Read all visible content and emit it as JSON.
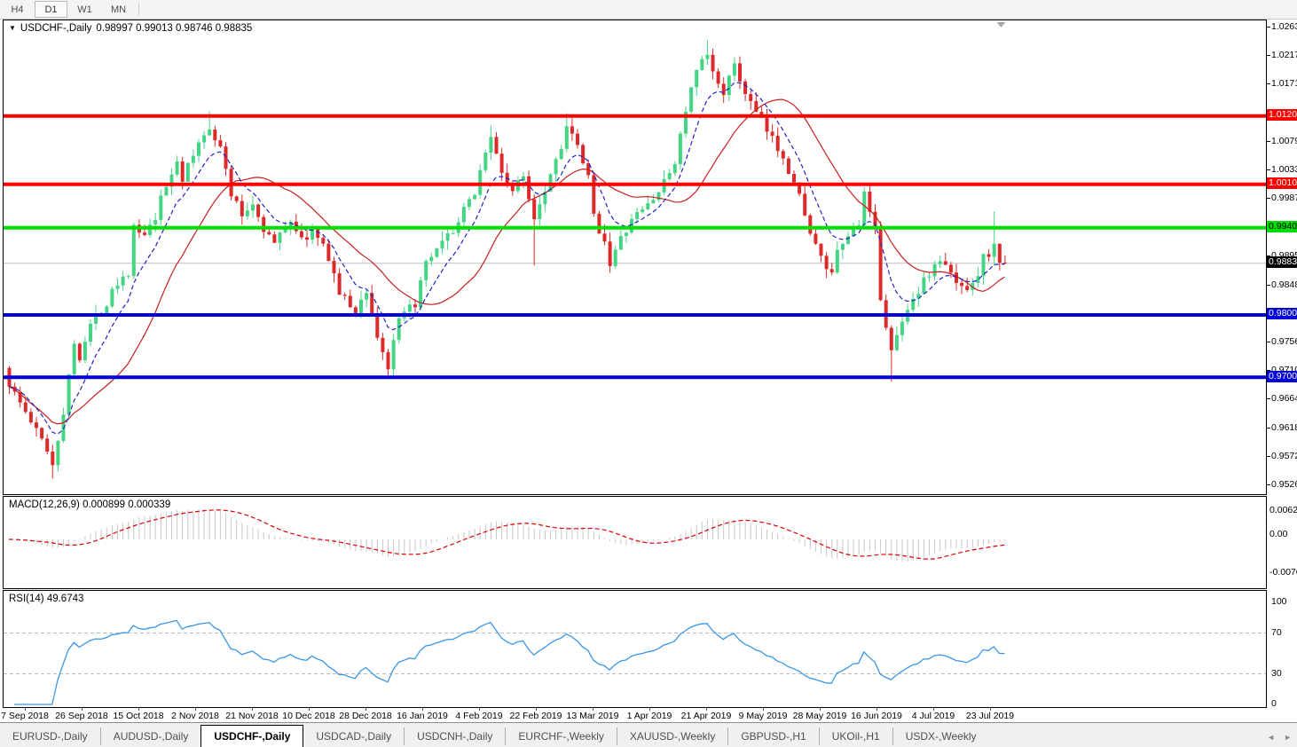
{
  "toolbar": {
    "buttons": [
      {
        "label": "H4",
        "active": false
      },
      {
        "label": "D1",
        "active": true
      },
      {
        "label": "W1",
        "active": false
      },
      {
        "label": "MN",
        "active": false
      }
    ]
  },
  "icons": {
    "symbol_dropdown": "▼",
    "chart_shift_marker": "triangle-down",
    "tab_scroll_left": "◄",
    "tab_scroll_right": "►"
  },
  "chart": {
    "title": {
      "symbol": "USDCHF-,Daily",
      "ohlc": "0.98997 0.99013 0.98746 0.98835",
      "open": "0.98997",
      "high": "0.99013",
      "low": "0.98746",
      "close": "0.98835"
    },
    "price_axis": {
      "ticks": [
        "1.02630",
        "1.02170",
        "1.01710",
        "1.00790",
        "1.00330",
        "0.99870",
        "0.98950",
        "0.98480",
        "0.97560",
        "0.97100",
        "0.96640",
        "0.96180",
        "0.95720",
        "0.95260"
      ],
      "price_at_top_anchor": 1.0263,
      "price_per_pixel": 0.0001428
    },
    "levels": [
      {
        "price": 1.01205,
        "label": "1.01205",
        "color": "#FF0000",
        "text_color": "#FFFFFF",
        "role": "resistance"
      },
      {
        "price": 1.00106,
        "label": "1.00106",
        "color": "#FF0000",
        "text_color": "#FFFFFF",
        "role": "resistance"
      },
      {
        "price": 0.99406,
        "label": "0.99406",
        "color": "#00DE00",
        "text_color": "#000000",
        "role": "pivot"
      },
      {
        "price": 0.98004,
        "label": "0.98004",
        "color": "#0000DC",
        "text_color": "#FFFFFF",
        "role": "support"
      },
      {
        "price": 0.97001,
        "label": "0.97001",
        "color": "#0000DC",
        "text_color": "#FFFFFF",
        "role": "support"
      }
    ],
    "current_price": {
      "price": 0.98835,
      "label": "0.98835",
      "line_color": "#C0C0C0",
      "badge_bg": "#000000",
      "badge_text": "#FFFFFF"
    },
    "colors": {
      "bull": "#44D584",
      "bear": "#DC2A2A",
      "ma_fast": "#2222C8",
      "ma_slow": "#C81E1E",
      "macd_histogram": "#C8C8C8",
      "macd_signal": "#E00000",
      "rsi_line": "#3A96E8",
      "rsi_levels": "#BBBBBB"
    },
    "chart_data": {
      "type": "candlestick",
      "symbol": "USDCHF",
      "timeframe": "Daily",
      "bar_count": 185,
      "first_open": 0.9715,
      "last_close": 0.98835,
      "close_waypoints": [
        [
          0,
          0.969
        ],
        [
          4,
          0.9628
        ],
        [
          7,
          0.9585
        ],
        [
          8,
          0.956
        ],
        [
          10,
          0.9645
        ],
        [
          12,
          0.9755
        ],
        [
          13,
          0.9735
        ],
        [
          15,
          0.9785
        ],
        [
          18,
          0.982
        ],
        [
          19,
          0.9845
        ],
        [
          22,
          0.987
        ],
        [
          23,
          0.994
        ],
        [
          25,
          0.9925
        ],
        [
          27,
          0.9955
        ],
        [
          28,
          0.9985
        ],
        [
          31,
          1.005
        ],
        [
          32,
          1.002
        ],
        [
          35,
          1.0075
        ],
        [
          37,
          1.0105
        ],
        [
          39,
          1.007
        ],
        [
          41,
          0.9995
        ],
        [
          43,
          0.996
        ],
        [
          45,
          0.998
        ],
        [
          47,
          0.994
        ],
        [
          49,
          0.9915
        ],
        [
          52,
          0.9955
        ],
        [
          54,
          0.992
        ],
        [
          56,
          0.9935
        ],
        [
          59,
          0.9895
        ],
        [
          61,
          0.9835
        ],
        [
          64,
          0.9805
        ],
        [
          66,
          0.984
        ],
        [
          68,
          0.9765
        ],
        [
          70,
          0.9715
        ],
        [
          72,
          0.979
        ],
        [
          75,
          0.982
        ],
        [
          77,
          0.988
        ],
        [
          81,
          0.9925
        ],
        [
          83,
          0.995
        ],
        [
          86,
          1.0
        ],
        [
          88,
          1.0065
        ],
        [
          89,
          1.0085
        ],
        [
          91,
          1.003
        ],
        [
          93,
          1.0
        ],
        [
          95,
          1.0022
        ],
        [
          97,
          0.996
        ],
        [
          99,
          1.0005
        ],
        [
          102,
          1.0075
        ],
        [
          103,
          1.0105
        ],
        [
          105,
          1.0068
        ],
        [
          107,
          1.002
        ],
        [
          108,
          0.9958
        ],
        [
          110,
          0.992
        ],
        [
          111,
          0.9885
        ],
        [
          114,
          0.9938
        ],
        [
          116,
          0.9962
        ],
        [
          119,
          0.9988
        ],
        [
          121,
          1.0012
        ],
        [
          123,
          1.0048
        ],
        [
          125,
          1.013
        ],
        [
          127,
          1.0192
        ],
        [
          129,
          1.0218
        ],
        [
          130,
          1.0188
        ],
        [
          132,
          1.0162
        ],
        [
          134,
          1.0198
        ],
        [
          135,
          1.0178
        ],
        [
          137,
          1.014
        ],
        [
          139,
          1.011
        ],
        [
          141,
          1.0082
        ],
        [
          143,
          1.0058
        ],
        [
          145,
          1.0012
        ],
        [
          147,
          0.9968
        ],
        [
          148,
          0.993
        ],
        [
          150,
          0.989
        ],
        [
          152,
          0.9862
        ],
        [
          153,
          0.9898
        ],
        [
          155,
          0.9928
        ],
        [
          157,
          0.9952
        ],
        [
          158,
          0.9992
        ],
        [
          160,
          0.993
        ],
        [
          161,
          0.983
        ],
        [
          163,
          0.9742
        ],
        [
          165,
          0.9788
        ],
        [
          166,
          0.9815
        ],
        [
          168,
          0.984
        ],
        [
          170,
          0.9868
        ],
        [
          172,
          0.9888
        ],
        [
          174,
          0.9866
        ],
        [
          175,
          0.985
        ],
        [
          177,
          0.9846
        ],
        [
          179,
          0.9868
        ],
        [
          180,
          0.9893
        ],
        [
          182,
          0.9908
        ],
        [
          183,
          0.9888
        ],
        [
          184,
          0.98835
        ]
      ],
      "wick_overrides": {
        "8": {
          "low": 0.9537
        },
        "37": {
          "high": 1.0128
        },
        "70": {
          "low": 0.97
        },
        "89": {
          "high": 1.0105
        },
        "97": {
          "low": 0.988
        },
        "103": {
          "high": 1.0125
        },
        "129": {
          "high": 1.0243
        },
        "134": {
          "high": 1.0215
        },
        "158": {
          "high": 1.0006
        },
        "163": {
          "low": 0.9693
        },
        "182": {
          "high": 0.9967
        }
      },
      "moving_averages": [
        {
          "name": "fast-ma",
          "method": "ema",
          "period": 8,
          "style": "dashed"
        },
        {
          "name": "slow-ma",
          "method": "sma",
          "period": 20,
          "style": "solid"
        }
      ],
      "generation": {
        "seed": 1337,
        "close_noise": 0.0008,
        "wick_noise": 0.0015
      }
    }
  },
  "macd": {
    "label": "MACD(12,26,9) 0.000899 0.000339",
    "params": {
      "fast": 12,
      "slow": 26,
      "signal": 9
    },
    "current_main": "0.000899",
    "current_signal": "0.000339",
    "axis_labels": [
      "0.006286",
      "0.00",
      "-0.00762"
    ]
  },
  "rsi": {
    "label": "RSI(14) 49.6743",
    "period": 14,
    "current_value": "49.6743",
    "axis_labels": [
      "100",
      "70",
      "30",
      "0"
    ],
    "level_lines": [
      70,
      30
    ]
  },
  "dates": [
    "7 Sep 2018",
    "26 Sep 2018",
    "15 Oct 2018",
    "2 Nov 2018",
    "21 Nov 2018",
    "10 Dec 2018",
    "28 Dec 2018",
    "16 Jan 2019",
    "4 Feb 2019",
    "22 Feb 2019",
    "13 Mar 2019",
    "1 Apr 2019",
    "21 Apr 2019",
    "9 May 2019",
    "28 May 2019",
    "16 Jun 2019",
    "4 Jul 2019",
    "23 Jul 2019"
  ],
  "tabs": [
    {
      "label": "EURUSD-,Daily",
      "active": false
    },
    {
      "label": "AUDUSD-,Daily",
      "active": false
    },
    {
      "label": "USDCHF-,Daily",
      "active": true
    },
    {
      "label": "USDCAD-,Daily",
      "active": false
    },
    {
      "label": "USDCNH-,Daily",
      "active": false
    },
    {
      "label": "EURCHF-,Weekly",
      "active": false
    },
    {
      "label": "XAUUSD-,Weekly",
      "active": false
    },
    {
      "label": "GBPUSD-,H1",
      "active": false
    },
    {
      "label": "UKOil-,H1",
      "active": false
    },
    {
      "label": "USDX-,Weekly",
      "active": false
    }
  ]
}
